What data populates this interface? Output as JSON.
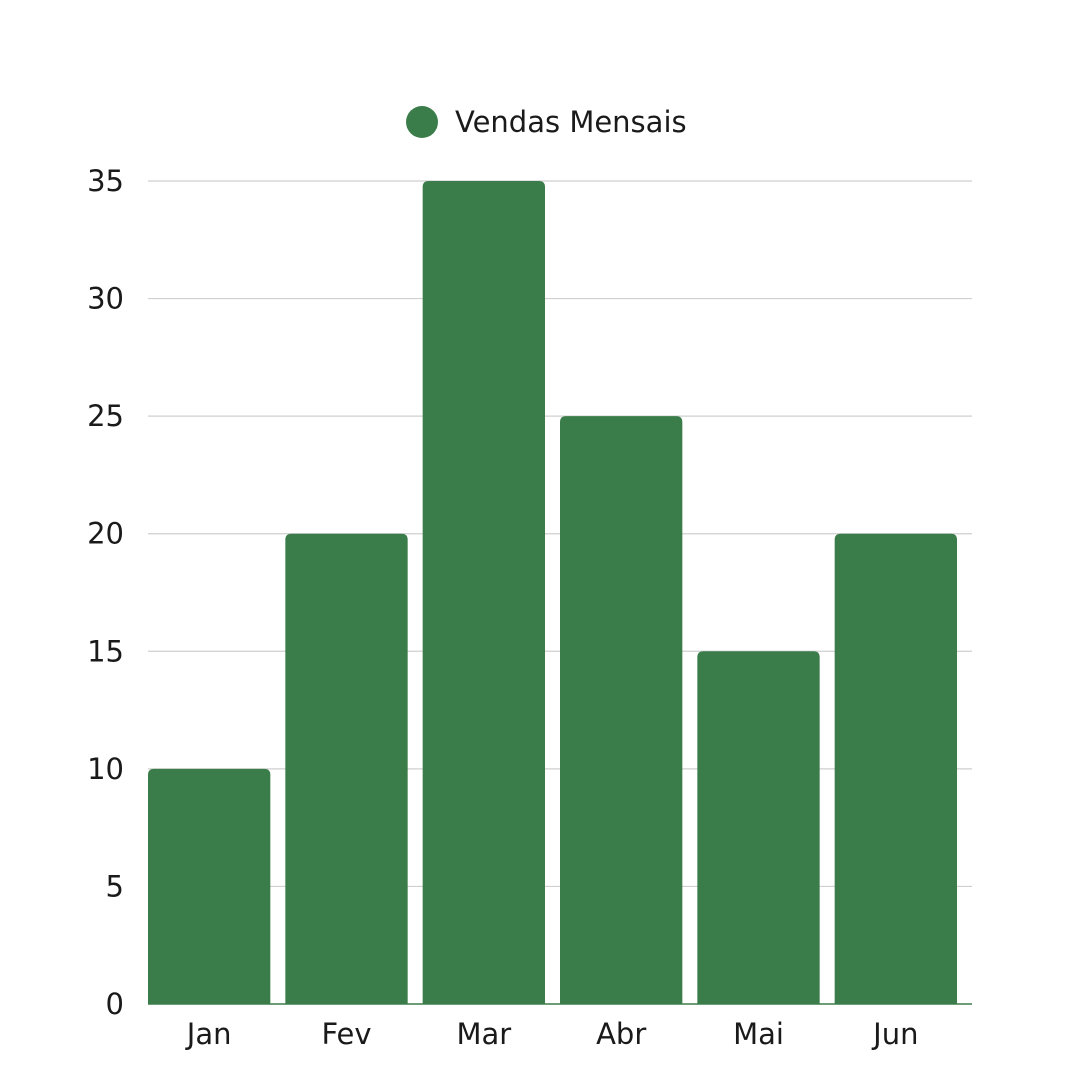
{
  "chart_data": {
    "type": "bar",
    "categories": [
      "Jan",
      "Fev",
      "Mar",
      "Abr",
      "Mai",
      "Jun"
    ],
    "series": [
      {
        "name": "Vendas Mensais",
        "values": [
          10,
          20,
          35,
          25,
          15,
          20
        ],
        "color": "#3b7d4a"
      }
    ],
    "yticks": [
      "0",
      "5",
      "10",
      "15",
      "20",
      "25",
      "30",
      "35"
    ],
    "ylim": [
      0,
      35
    ],
    "grid": true,
    "legend_position": "top-center",
    "title": "",
    "xlabel": "",
    "ylabel": ""
  }
}
